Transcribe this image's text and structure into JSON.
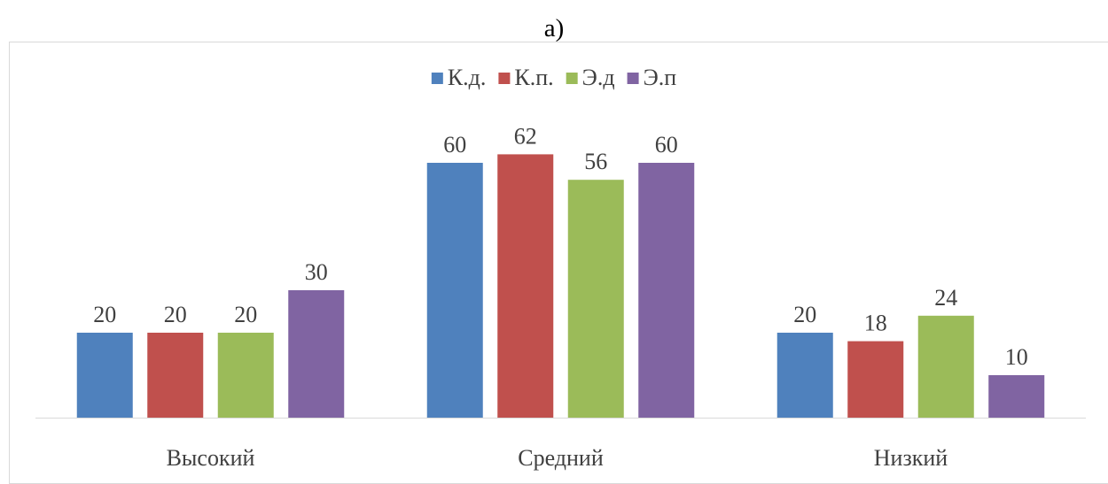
{
  "heading": "а)",
  "chart_data": {
    "type": "bar",
    "title": "",
    "xlabel": "",
    "ylabel": "",
    "categories": [
      "Высокий",
      "Средний",
      "Низкий"
    ],
    "series": [
      {
        "name": "К.д.",
        "color": "#4f81bd",
        "values": [
          20,
          60,
          20
        ]
      },
      {
        "name": "К.п.",
        "color": "#c0504d",
        "values": [
          20,
          62,
          18
        ]
      },
      {
        "name": "Э.д",
        "color": "#9bbb59",
        "values": [
          20,
          56,
          24
        ]
      },
      {
        "name": "Э.п",
        "color": "#8064a2",
        "values": [
          30,
          60,
          10
        ]
      }
    ],
    "ylim": [
      0,
      70
    ],
    "grid": false,
    "legend": "top-center",
    "data_labels": true
  }
}
